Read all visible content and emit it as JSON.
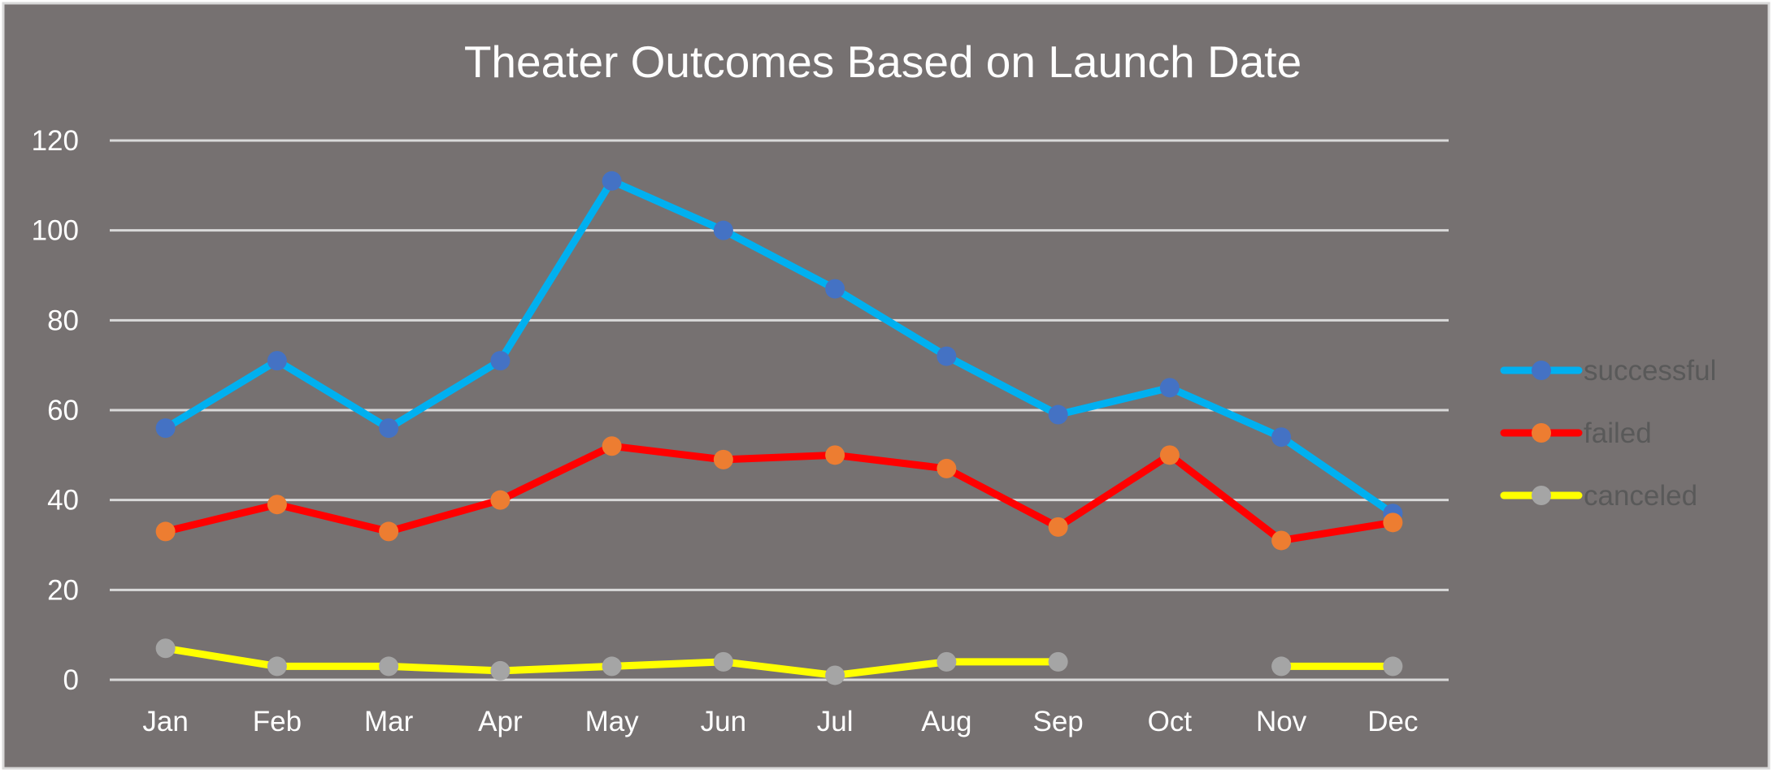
{
  "chart_data": {
    "type": "line",
    "title": "Theater Outcomes Based on Launch Date",
    "xlabel": "",
    "ylabel": "",
    "categories": [
      "Jan",
      "Feb",
      "Mar",
      "Apr",
      "May",
      "Jun",
      "Jul",
      "Aug",
      "Sep",
      "Oct",
      "Nov",
      "Dec"
    ],
    "ylim": [
      0,
      120
    ],
    "yticks": [
      0,
      20,
      40,
      60,
      80,
      100,
      120
    ],
    "grid": true,
    "legend_position": "right",
    "background_color": "#767171",
    "series": [
      {
        "name": "successful",
        "values": [
          56,
          71,
          56,
          71,
          111,
          100,
          87,
          72,
          59,
          65,
          54,
          37
        ],
        "line_color": "#00B0F0",
        "marker_color": "#4472C4"
      },
      {
        "name": "failed",
        "values": [
          33,
          39,
          33,
          40,
          52,
          49,
          50,
          47,
          34,
          50,
          31,
          35
        ],
        "line_color": "#FF0000",
        "marker_color": "#ED7D31"
      },
      {
        "name": "canceled",
        "values": [
          7,
          3,
          3,
          2,
          3,
          4,
          1,
          4,
          4,
          null,
          3,
          3
        ],
        "line_color": "#FFFF00",
        "marker_color": "#A5A5A5"
      }
    ]
  }
}
